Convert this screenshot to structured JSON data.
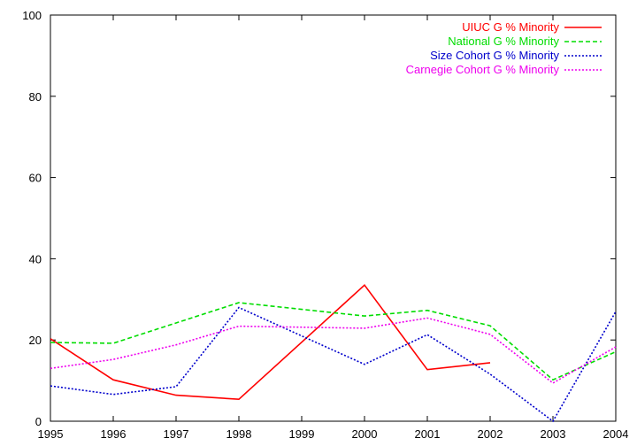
{
  "chart_data": {
    "type": "line",
    "title": "",
    "xlabel": "",
    "ylabel": "",
    "xlim": [
      1995,
      2004
    ],
    "ylim": [
      0,
      100
    ],
    "grid": false,
    "legend_position": "top-right",
    "x_ticks": [
      "1995",
      "1996",
      "1997",
      "1998",
      "1999",
      "2000",
      "2001",
      "2002",
      "2003",
      "2004"
    ],
    "y_ticks": [
      "0",
      "20",
      "40",
      "60",
      "80",
      "100"
    ],
    "series": [
      {
        "name": "UIUC G % Minority",
        "color": "#ff0000",
        "dash": "solid",
        "x": [
          1995,
          1996,
          1997,
          1998,
          2000,
          2001,
          2002
        ],
        "values": [
          20.3,
          10.2,
          6.4,
          5.4,
          33.5,
          12.7,
          14.4
        ]
      },
      {
        "name": "National G % Minority",
        "color": "#00dd00",
        "dash": "dashed",
        "x": [
          1995,
          1996,
          1998,
          2000,
          2001,
          2002,
          2003,
          2004
        ],
        "values": [
          19.4,
          19.2,
          29.2,
          25.9,
          27.3,
          23.5,
          10.2,
          17.1
        ]
      },
      {
        "name": "Size Cohort G % Minority",
        "color": "#0000cc",
        "dash": "dotted",
        "x": [
          1995,
          1996,
          1997,
          1998,
          2000,
          2001,
          2002,
          2003,
          2004
        ],
        "values": [
          8.7,
          6.6,
          8.5,
          28.0,
          14.0,
          21.3,
          11.6,
          0.0,
          27.0
        ]
      },
      {
        "name": "Carnegie Cohort G % Minority",
        "color": "#ee00ee",
        "dash": "dotted",
        "x": [
          1995,
          1996,
          1997,
          1998,
          2000,
          2001,
          2002,
          2003,
          2004
        ],
        "values": [
          13.0,
          15.2,
          18.8,
          23.4,
          22.9,
          25.4,
          21.4,
          9.4,
          18.3
        ]
      }
    ]
  }
}
